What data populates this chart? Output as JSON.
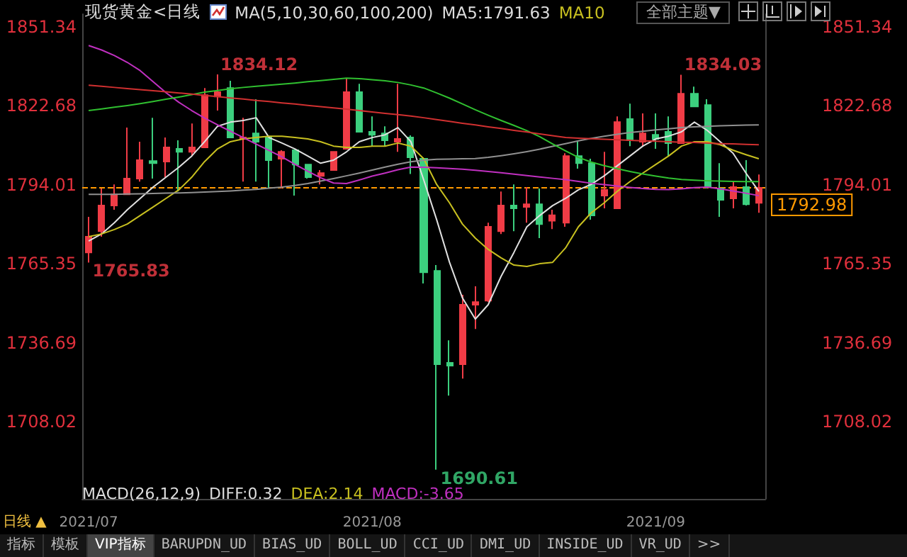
{
  "chart_data": {
    "type": "candlestick",
    "title": "现货黄金<日线",
    "categories": [
      "2021/07",
      null,
      null,
      null,
      null,
      null,
      null,
      null,
      null,
      null,
      null,
      null,
      null,
      null,
      null,
      null,
      null,
      null,
      null,
      null,
      null,
      null,
      "2021/08",
      null,
      null,
      null,
      null,
      null,
      null,
      null,
      null,
      null,
      null,
      null,
      null,
      null,
      null,
      null,
      null,
      null,
      null,
      null,
      null,
      null,
      "2021/09",
      null,
      null,
      null,
      null,
      null,
      null,
      null,
      null
    ],
    "colors": [
      "#f03c46",
      "#f03c46",
      "#f03c46",
      "#f03c46",
      "#f03c46",
      "#3ccf7e",
      "#f03c46",
      "#3ccf7e",
      "#f03c46",
      "#f03c46",
      "#f03c46",
      "#3ccf7e",
      "#f03c46",
      "#3ccf7e",
      "#3ccf7e",
      "#f03c46",
      "#3ccf7e",
      "#3ccf7e",
      "#f03c46",
      "#f03c46",
      "#f03c46",
      "#3ccf7e",
      "#3ccf7e",
      "#3ccf7e",
      "#f03c46",
      "#3ccf7e",
      "#3ccf7e",
      "#3ccf7e",
      "#3ccf7e",
      "#f03c46",
      "#f03c46",
      "#f03c46",
      "#f03c46",
      "#3ccf7e",
      "#f03c46",
      "#3ccf7e",
      "#f03c46",
      "#f03c46",
      "#3ccf7e",
      "#3ccf7e",
      "#f03c46",
      "#f03c46",
      "#3ccf7e",
      "#f03c46",
      "#3ccf7e",
      "#3ccf7e",
      "#f03c46",
      "#3ccf7e",
      "#3ccf7e",
      "#3ccf7e",
      "#f03c46",
      "#3ccf7e",
      "#f03c46"
    ],
    "ohlc": [
      [
        1769.5,
        1782.4,
        1765.83,
        1775.2
      ],
      [
        1777.2,
        1792.7,
        1775.2,
        1786.5
      ],
      [
        1786.5,
        1794.2,
        1785.0,
        1790.6
      ],
      [
        1790.6,
        1814.8,
        1790.6,
        1796.3
      ],
      [
        1796.3,
        1809.7,
        1795.2,
        1803.0
      ],
      [
        1802.7,
        1818.4,
        1796.3,
        1801.9
      ],
      [
        1802.5,
        1811.2,
        1796.8,
        1807.6
      ],
      [
        1807.1,
        1810.2,
        1791.6,
        1806.0
      ],
      [
        1806.0,
        1816.3,
        1804.5,
        1807.6
      ],
      [
        1807.6,
        1829.2,
        1807.6,
        1826.6
      ],
      [
        1826.1,
        1834.12,
        1821.0,
        1827.7
      ],
      [
        1829.2,
        1831.8,
        1811.2,
        1811.2
      ],
      [
        1810.7,
        1818.4,
        1795.2,
        1811.2
      ],
      [
        1812.7,
        1825.1,
        1795.2,
        1809.7
      ],
      [
        1811.2,
        1811.2,
        1792.7,
        1803.0
      ],
      [
        1803.5,
        1806.6,
        1792.7,
        1806.0
      ],
      [
        1806.6,
        1806.6,
        1790.1,
        1801.4
      ],
      [
        1801.4,
        1801.4,
        1796.3,
        1796.8
      ],
      [
        1797.3,
        1799.4,
        1794.2,
        1798.3
      ],
      [
        1799.4,
        1806.0,
        1799.4,
        1806.0
      ],
      [
        1807.1,
        1832.8,
        1807.1,
        1827.7
      ],
      [
        1827.7,
        1830.7,
        1813.3,
        1813.3
      ],
      [
        1813.3,
        1818.9,
        1808.1,
        1812.2
      ],
      [
        1812.7,
        1815.3,
        1808.1,
        1810.2
      ],
      [
        1809.7,
        1830.7,
        1806.0,
        1810.7
      ],
      [
        1811.2,
        1812.0,
        1798.0,
        1804.0
      ],
      [
        1803.5,
        1804.0,
        1758.2,
        1762.3
      ],
      [
        1762.8,
        1764.9,
        1690.61,
        1728.9
      ],
      [
        1729.4,
        1737.6,
        1717.5,
        1728.4
      ],
      [
        1728.9,
        1754.1,
        1723.7,
        1750.5
      ],
      [
        1750.5,
        1757.2,
        1741.7,
        1751.5
      ],
      [
        1752.0,
        1780.3,
        1751.5,
        1778.8
      ],
      [
        1777.2,
        1791.6,
        1776.2,
        1786.5
      ],
      [
        1786.5,
        1794.2,
        1777.2,
        1785.5
      ],
      [
        1786.0,
        1793.2,
        1780.3,
        1787.0
      ],
      [
        1787.0,
        1792.7,
        1774.7,
        1779.8
      ],
      [
        1781.0,
        1785.0,
        1778.0,
        1783.0
      ],
      [
        1780.3,
        1805.5,
        1778.8,
        1804.5
      ],
      [
        1804.5,
        1809.7,
        1799.9,
        1801.9
      ],
      [
        1801.9,
        1803.5,
        1781.4,
        1782.9
      ],
      [
        1790.1,
        1806.0,
        1785.5,
        1792.2
      ],
      [
        1785.5,
        1818.9,
        1785.5,
        1816.8
      ],
      [
        1817.9,
        1823.5,
        1808.1,
        1810.2
      ],
      [
        1809.7,
        1820.0,
        1808.1,
        1812.7
      ],
      [
        1812.2,
        1820.0,
        1807.1,
        1810.7
      ],
      [
        1813.3,
        1818.9,
        1804.5,
        1809.2
      ],
      [
        1809.2,
        1834.03,
        1809.2,
        1827.1
      ],
      [
        1827.1,
        1829.7,
        1822.5,
        1822.5
      ],
      [
        1823.0,
        1825.1,
        1792.7,
        1793.2
      ],
      [
        1792.7,
        1801.9,
        1782.4,
        1788.6
      ],
      [
        1789.1,
        1795.2,
        1785.5,
        1793.2
      ],
      [
        1793.2,
        1803.0,
        1786.5,
        1787.0
      ],
      [
        1787.5,
        1797.8,
        1783.9,
        1792.98
      ]
    ],
    "series": [
      {
        "type": "line",
        "color": "#e0e0e0",
        "values": [
          1773.6,
          1776.2,
          1780.3,
          1785.0,
          1789.1,
          1793.2,
          1796.8,
          1800.4,
          1804.5,
          1809.7,
          1815.3,
          1816.8,
          1817.4,
          1818.4,
          1811.2,
          1809.2,
          1807.1,
          1804.5,
          1801.9,
          1803.0,
          1806.0,
          1809.7,
          1811.2,
          1812.2,
          1814.8,
          1809.7,
          1795.8,
          1781.4,
          1765.9,
          1753.0,
          1745.3,
          1750.5,
          1760.8,
          1769.5,
          1778.8,
          1782.9,
          1786.5,
          1789.1,
          1792.2,
          1794.2,
          1797.3,
          1800.9,
          1804.5,
          1808.1,
          1810.7,
          1811.7,
          1813.3,
          1816.8,
          1813.8,
          1809.7,
          1805.5,
          1798.3,
          1791.63
        ]
      },
      {
        "type": "line",
        "color": "#c8c020",
        "values": [
          1775.2,
          1776.2,
          1777.8,
          1779.8,
          1782.9,
          1786.0,
          1789.1,
          1792.2,
          1796.8,
          1802.5,
          1807.1,
          1809.7,
          1810.7,
          1811.2,
          1811.7,
          1811.7,
          1811.2,
          1810.7,
          1809.7,
          1808.1,
          1807.6,
          1807.6,
          1808.1,
          1808.1,
          1809.2,
          1808.1,
          1803.5,
          1794.2,
          1787.5,
          1779.8,
          1774.7,
          1770.6,
          1767.5,
          1764.9,
          1764.4,
          1765.4,
          1765.9,
          1771.1,
          1778.8,
          1783.9,
          1787.5,
          1791.6,
          1795.2,
          1798.3,
          1801.4,
          1804.5,
          1808.1,
          1809.7,
          1809.7,
          1808.6,
          1806.6,
          1805.0,
          1803.5
        ]
      },
      {
        "type": "line",
        "color": "#909090",
        "values": [
          1790.6,
          1790.6,
          1790.6,
          1790.7,
          1790.8,
          1790.9,
          1791.0,
          1791.1,
          1791.2,
          1791.4,
          1791.6,
          1791.8,
          1792.1,
          1792.4,
          1792.8,
          1793.2,
          1793.8,
          1794.5,
          1795.4,
          1796.3,
          1797.3,
          1798.3,
          1799.4,
          1800.5,
          1801.5,
          1802.4,
          1803.0,
          1803.3,
          1803.4,
          1803.5,
          1803.6,
          1804.0,
          1804.6,
          1805.3,
          1806.1,
          1807.0,
          1808.0,
          1809.0,
          1810.0,
          1810.9,
          1811.7,
          1812.4,
          1813.0,
          1813.5,
          1814.0,
          1814.4,
          1814.8,
          1815.1,
          1815.3,
          1815.5,
          1815.6,
          1815.7,
          1815.8
        ]
      },
      {
        "type": "line",
        "color": "#c030c0",
        "values": [
          1844.6,
          1843.0,
          1841.0,
          1838.5,
          1835.5,
          1831.5,
          1827.5,
          1824.0,
          1821.0,
          1818.3,
          1815.8,
          1813.5,
          1811.2,
          1808.8,
          1806.5,
          1804.2,
          1801.5,
          1799.0,
          1796.6,
          1794.7,
          1794.5,
          1795.8,
          1797.2,
          1798.3,
          1799.5,
          1800.5,
          1800.4,
          1800.2,
          1800.0,
          1799.7,
          1799.3,
          1798.9,
          1798.4,
          1797.9,
          1797.4,
          1796.9,
          1796.4,
          1795.9,
          1795.3,
          1794.6,
          1794.1,
          1793.6,
          1793.1,
          1792.7,
          1792.4,
          1792.3,
          1792.6,
          1793.0,
          1793.2,
          1792.6,
          1791.8,
          1791.0,
          1790.1
        ]
      },
      {
        "type": "line",
        "color": "#30c030",
        "values": [
          1821.0,
          1821.6,
          1822.2,
          1822.8,
          1823.5,
          1824.3,
          1825.1,
          1825.9,
          1826.8,
          1827.7,
          1828.3,
          1828.9,
          1829.4,
          1829.8,
          1830.2,
          1830.6,
          1831.0,
          1831.5,
          1831.9,
          1832.3,
          1832.8,
          1832.6,
          1832.2,
          1831.8,
          1831.2,
          1830.3,
          1829.2,
          1827.4,
          1825.5,
          1823.4,
          1821.3,
          1819.3,
          1817.4,
          1815.6,
          1813.7,
          1811.5,
          1808.9,
          1806.4,
          1804.0,
          1802.3,
          1801.0,
          1799.9,
          1798.9,
          1798.0,
          1797.2,
          1796.5,
          1796.0,
          1795.7,
          1795.5,
          1795.4,
          1795.3,
          1795.2,
          1795.2
        ]
      },
      {
        "type": "line",
        "color": "#d03030",
        "values": [
          1830.2,
          1829.8,
          1829.4,
          1829.0,
          1828.6,
          1828.2,
          1827.8,
          1827.4,
          1827.0,
          1826.5,
          1826.1,
          1825.6,
          1825.2,
          1824.7,
          1824.3,
          1823.8,
          1823.4,
          1822.9,
          1822.4,
          1822.0,
          1821.5,
          1821.0,
          1820.5,
          1820.0,
          1819.5,
          1819.0,
          1818.4,
          1817.7,
          1817.1,
          1816.4,
          1815.8,
          1815.1,
          1814.5,
          1813.8,
          1813.2,
          1812.5,
          1811.9,
          1811.2,
          1811.0,
          1810.8,
          1810.6,
          1810.4,
          1810.2,
          1810.0,
          1809.9,
          1809.7,
          1809.5,
          1809.4,
          1809.2,
          1809.0,
          1808.9,
          1808.7,
          1808.6
        ]
      }
    ],
    "ylim": [
      1680,
      1856
    ],
    "yticks": [
      1851.34,
      1822.68,
      1794.01,
      1765.35,
      1736.69,
      1708.02
    ],
    "y2lim": [
      1680,
      1856
    ],
    "y2ticks": [
      1851.34,
      1822.68,
      1794.01,
      1765.35,
      1736.69,
      1708.02
    ],
    "ref_lines": [
      {
        "axis": "y2",
        "value": 1792.98,
        "label": "1792.98",
        "color": "#ff9900",
        "line_style": "dashed"
      }
    ],
    "annotations": [
      "MA(5,10,30,60,100,200)",
      "MA5:1791.63",
      "MA10",
      "MACD(26,12,9)",
      "DIFF:0.32",
      "DEA:2.14",
      "MACD:-3.65",
      "日线 ▲",
      "全部主题▼",
      "指标",
      "模板",
      "VIP指标",
      "BARUPDN_UD",
      "BIAS_UD",
      "BOLL_UD",
      "CCI_UD",
      "DMI_UD",
      "INSIDE_UD",
      "VR_UD",
      ">>",
      "1834.12",
      "1834.03",
      "1765.83",
      "1690.61"
    ]
  }
}
